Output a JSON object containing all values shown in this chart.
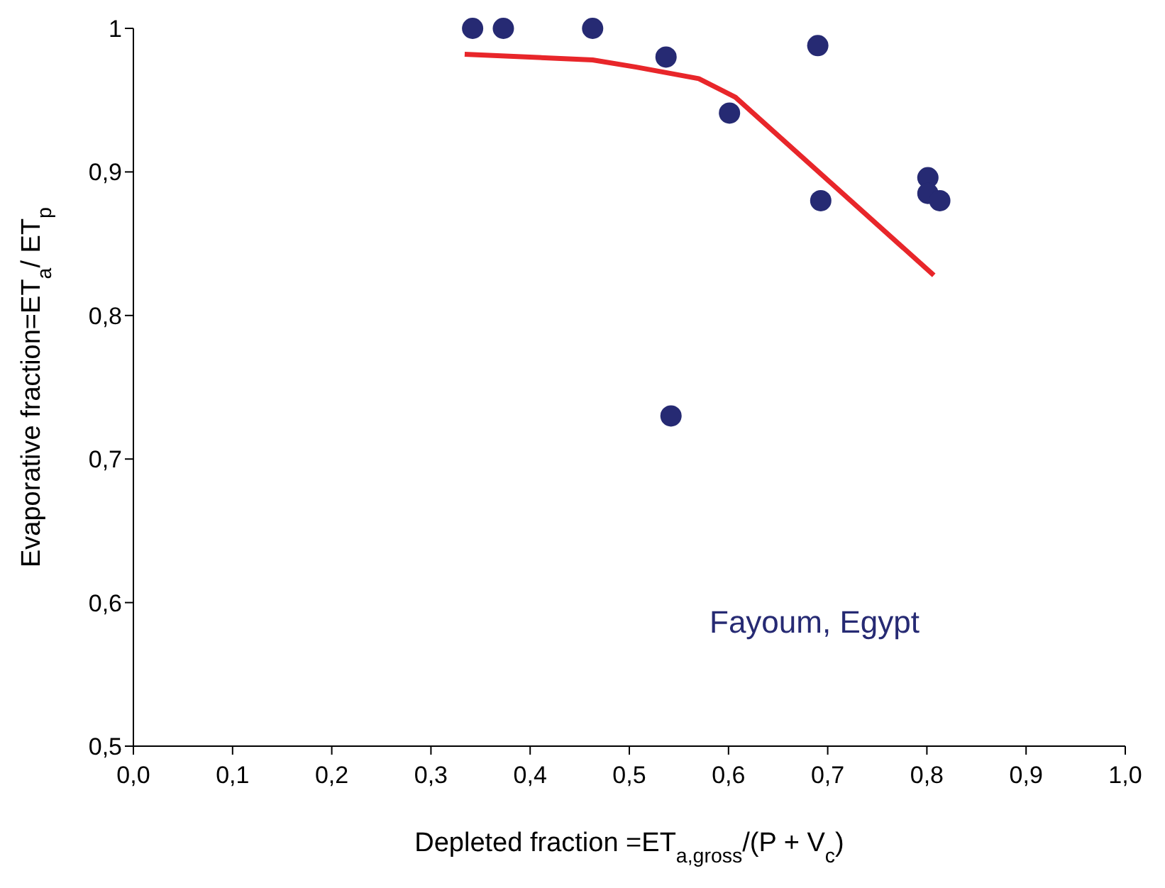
{
  "chart_data": {
    "type": "scatter",
    "xlabel": "Depleted fraction =ET$_{a,gross}$/(P + V$_{c}$)",
    "ylabel": "Evaporative fraction=ET$_{a}$/ ET$_{p}$",
    "xlim": [
      0,
      1
    ],
    "ylim": [
      0.5,
      1
    ],
    "xticks": [
      {
        "value": 0,
        "label": "0,0"
      },
      {
        "value": 0.1,
        "label": "0,1"
      },
      {
        "value": 0.2,
        "label": "0,2"
      },
      {
        "value": 0.3,
        "label": "0,3"
      },
      {
        "value": 0.4,
        "label": "0,4"
      },
      {
        "value": 0.5,
        "label": "0,5"
      },
      {
        "value": 0.6,
        "label": "0,6"
      },
      {
        "value": 0.7,
        "label": "0,7"
      },
      {
        "value": 0.8,
        "label": "0,8"
      },
      {
        "value": 0.9,
        "label": "0,9"
      },
      {
        "value": 1,
        "label": "1,0"
      }
    ],
    "yticks": [
      {
        "value": 0.5,
        "label": "0,5"
      },
      {
        "value": 0.6,
        "label": "0,6"
      },
      {
        "value": 0.7,
        "label": "0,7"
      },
      {
        "value": 0.8,
        "label": "0,8"
      },
      {
        "value": 0.9,
        "label": "0,9"
      },
      1
    ],
    "grid": false,
    "marker": "circle",
    "annotations": [
      "Fayoum, Egypt"
    ],
    "series": [
      {
        "color": "#262a73",
        "x": [
          0.342,
          0.373,
          0.463,
          0.537,
          0.601,
          0.69,
          0.693,
          0.542,
          0.801,
          0.801,
          0.813
        ],
        "values": [
          1.0,
          1.0,
          1.0,
          0.98,
          0.941,
          0.988,
          0.88,
          0.73,
          0.896,
          0.885,
          0.88
        ]
      },
      {
        "type": "line",
        "color": "#e8262a",
        "line_style": "solid",
        "marker": "none",
        "x": [
          0.334,
          0.463,
          0.507,
          0.57,
          0.607,
          0.807
        ],
        "values": [
          0.982,
          0.978,
          0.973,
          0.965,
          0.952,
          0.828
        ]
      }
    ]
  }
}
